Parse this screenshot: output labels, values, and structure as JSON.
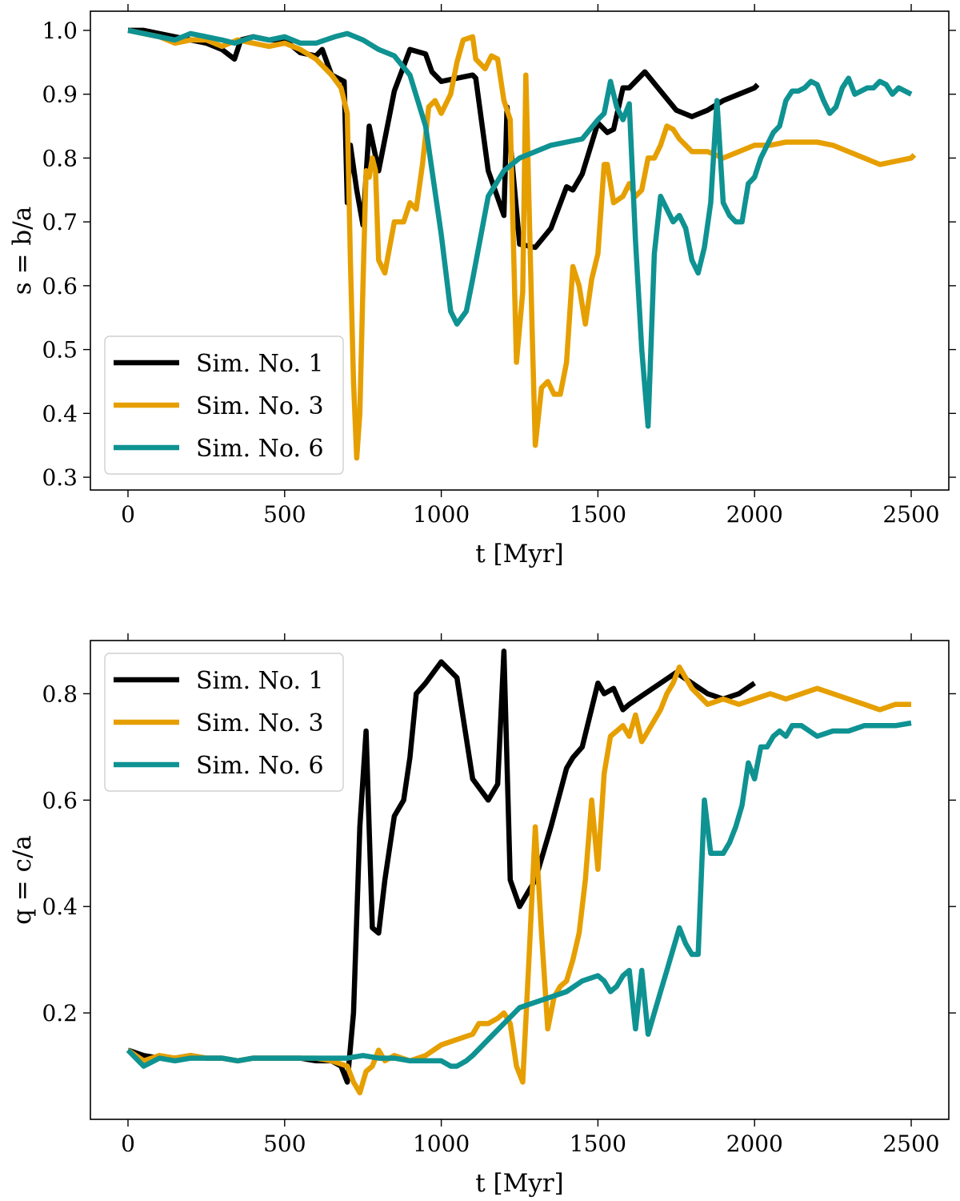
{
  "chart_data": [
    {
      "type": "line",
      "xlabel": "t [Myr]",
      "ylabel": "s = b/a",
      "xlim": [
        -120,
        2620
      ],
      "ylim": [
        0.28,
        1.03
      ],
      "xticks": [
        0,
        500,
        1000,
        1500,
        2000,
        2500
      ],
      "yticks": [
        0.3,
        0.4,
        0.5,
        0.6,
        0.7,
        0.8,
        0.9,
        1.0
      ],
      "xtick_labels": [
        "0",
        "500",
        "1000",
        "1500",
        "2000",
        "2500"
      ],
      "ytick_labels": [
        "0.3",
        "0.4",
        "0.5",
        "0.6",
        "0.7",
        "0.8",
        "0.9",
        "1.0"
      ],
      "legend_position": "lower-left",
      "series": [
        {
          "name": "Sim. No. 1",
          "color": "#000000",
          "x": [
            0,
            50,
            100,
            150,
            200,
            250,
            300,
            340,
            360,
            400,
            450,
            500,
            550,
            600,
            620,
            650,
            690,
            700,
            710,
            730,
            750,
            770,
            800,
            850,
            900,
            950,
            970,
            1000,
            1050,
            1100,
            1110,
            1150,
            1200,
            1210,
            1250,
            1300,
            1350,
            1400,
            1420,
            1450,
            1500,
            1530,
            1550,
            1580,
            1600,
            1650,
            1700,
            1750,
            1800,
            1850,
            1900,
            1950,
            2000,
            2010
          ],
          "y": [
            1.0,
            1.0,
            0.995,
            0.99,
            0.985,
            0.98,
            0.97,
            0.955,
            0.985,
            0.99,
            0.985,
            0.985,
            0.965,
            0.96,
            0.97,
            0.93,
            0.92,
            0.73,
            0.82,
            0.75,
            0.695,
            0.85,
            0.78,
            0.905,
            0.97,
            0.963,
            0.935,
            0.92,
            0.925,
            0.93,
            0.925,
            0.78,
            0.71,
            0.88,
            0.665,
            0.66,
            0.69,
            0.755,
            0.75,
            0.775,
            0.855,
            0.84,
            0.845,
            0.91,
            0.91,
            0.935,
            0.905,
            0.875,
            0.865,
            0.875,
            0.89,
            0.9,
            0.91,
            0.915
          ]
        },
        {
          "name": "Sim. No. 3",
          "color": "#e69f00",
          "x": [
            0,
            50,
            100,
            150,
            200,
            250,
            300,
            350,
            400,
            450,
            500,
            550,
            600,
            620,
            650,
            680,
            700,
            710,
            720,
            730,
            740,
            750,
            760,
            770,
            780,
            790,
            800,
            820,
            850,
            880,
            900,
            920,
            940,
            960,
            980,
            1000,
            1030,
            1050,
            1070,
            1100,
            1110,
            1140,
            1160,
            1180,
            1200,
            1220,
            1240,
            1260,
            1270,
            1290,
            1300,
            1320,
            1340,
            1360,
            1380,
            1400,
            1420,
            1440,
            1460,
            1480,
            1500,
            1520,
            1530,
            1550,
            1580,
            1600,
            1620,
            1640,
            1660,
            1680,
            1700,
            1720,
            1740,
            1760,
            1780,
            1800,
            1850,
            1900,
            1950,
            2000,
            2050,
            2100,
            2150,
            2200,
            2250,
            2300,
            2350,
            2400,
            2450,
            2500,
            2510
          ],
          "y": [
            1.0,
            0.995,
            0.99,
            0.98,
            0.985,
            0.985,
            0.975,
            0.985,
            0.98,
            0.975,
            0.98,
            0.97,
            0.955,
            0.945,
            0.93,
            0.91,
            0.87,
            0.64,
            0.45,
            0.33,
            0.4,
            0.6,
            0.78,
            0.77,
            0.8,
            0.78,
            0.64,
            0.62,
            0.7,
            0.7,
            0.73,
            0.72,
            0.79,
            0.88,
            0.89,
            0.87,
            0.9,
            0.95,
            0.985,
            0.99,
            0.955,
            0.94,
            0.96,
            0.955,
            0.89,
            0.86,
            0.48,
            0.59,
            0.93,
            0.53,
            0.35,
            0.44,
            0.45,
            0.43,
            0.43,
            0.48,
            0.63,
            0.6,
            0.54,
            0.61,
            0.65,
            0.79,
            0.79,
            0.73,
            0.74,
            0.76,
            0.74,
            0.75,
            0.8,
            0.8,
            0.82,
            0.85,
            0.845,
            0.83,
            0.82,
            0.81,
            0.81,
            0.8,
            0.81,
            0.82,
            0.82,
            0.825,
            0.825,
            0.825,
            0.82,
            0.81,
            0.8,
            0.79,
            0.795,
            0.8,
            0.805
          ]
        },
        {
          "name": "Sim. No. 6",
          "color": "#0f9292",
          "x": [
            0,
            50,
            100,
            150,
            200,
            250,
            300,
            340,
            400,
            450,
            500,
            550,
            600,
            630,
            660,
            700,
            750,
            800,
            850,
            900,
            950,
            1000,
            1030,
            1050,
            1080,
            1100,
            1150,
            1200,
            1250,
            1300,
            1350,
            1400,
            1450,
            1500,
            1520,
            1540,
            1560,
            1580,
            1600,
            1620,
            1640,
            1660,
            1680,
            1700,
            1720,
            1740,
            1760,
            1780,
            1800,
            1820,
            1840,
            1860,
            1880,
            1900,
            1920,
            1940,
            1960,
            1980,
            2000,
            2020,
            2040,
            2060,
            2080,
            2100,
            2120,
            2140,
            2160,
            2180,
            2200,
            2220,
            2240,
            2260,
            2280,
            2300,
            2320,
            2340,
            2360,
            2380,
            2400,
            2420,
            2440,
            2460,
            2480,
            2500
          ],
          "y": [
            1.0,
            0.995,
            0.99,
            0.985,
            0.995,
            0.99,
            0.985,
            0.98,
            0.99,
            0.985,
            0.99,
            0.98,
            0.98,
            0.985,
            0.99,
            0.995,
            0.985,
            0.97,
            0.96,
            0.93,
            0.85,
            0.68,
            0.56,
            0.54,
            0.56,
            0.61,
            0.74,
            0.78,
            0.8,
            0.81,
            0.82,
            0.825,
            0.83,
            0.86,
            0.87,
            0.92,
            0.88,
            0.86,
            0.885,
            0.67,
            0.5,
            0.38,
            0.65,
            0.74,
            0.72,
            0.7,
            0.71,
            0.69,
            0.64,
            0.62,
            0.66,
            0.73,
            0.89,
            0.73,
            0.71,
            0.7,
            0.7,
            0.76,
            0.77,
            0.8,
            0.82,
            0.84,
            0.85,
            0.89,
            0.905,
            0.905,
            0.91,
            0.92,
            0.915,
            0.89,
            0.87,
            0.88,
            0.91,
            0.925,
            0.9,
            0.905,
            0.91,
            0.91,
            0.92,
            0.915,
            0.9,
            0.91,
            0.905,
            0.9
          ]
        }
      ]
    },
    {
      "type": "line",
      "xlabel": "t [Myr]",
      "ylabel": "q = c/a",
      "xlim": [
        -120,
        2620
      ],
      "ylim": [
        0.0,
        0.9
      ],
      "xticks": [
        0,
        500,
        1000,
        1500,
        2000,
        2500
      ],
      "yticks": [
        0.2,
        0.4,
        0.6,
        0.8
      ],
      "xtick_labels": [
        "0",
        "500",
        "1000",
        "1500",
        "2000",
        "2500"
      ],
      "ytick_labels": [
        "0.2",
        "0.4",
        "0.6",
        "0.8"
      ],
      "legend_position": "upper-left",
      "series": [
        {
          "name": "Sim. No. 1",
          "color": "#000000",
          "x": [
            0,
            50,
            100,
            150,
            200,
            250,
            300,
            350,
            400,
            450,
            500,
            550,
            600,
            650,
            680,
            700,
            720,
            740,
            760,
            780,
            800,
            820,
            850,
            880,
            900,
            920,
            950,
            1000,
            1050,
            1100,
            1150,
            1180,
            1200,
            1220,
            1250,
            1280,
            1300,
            1350,
            1400,
            1420,
            1450,
            1500,
            1520,
            1550,
            1580,
            1600,
            1650,
            1700,
            1750,
            1800,
            1850,
            1900,
            1950,
            2000
          ],
          "y": [
            0.13,
            0.12,
            0.115,
            0.115,
            0.12,
            0.115,
            0.115,
            0.11,
            0.115,
            0.115,
            0.115,
            0.115,
            0.11,
            0.11,
            0.1,
            0.07,
            0.2,
            0.55,
            0.73,
            0.36,
            0.35,
            0.45,
            0.57,
            0.6,
            0.68,
            0.8,
            0.82,
            0.86,
            0.83,
            0.64,
            0.6,
            0.63,
            0.88,
            0.45,
            0.4,
            0.43,
            0.45,
            0.55,
            0.66,
            0.68,
            0.7,
            0.82,
            0.8,
            0.81,
            0.77,
            0.78,
            0.8,
            0.82,
            0.84,
            0.82,
            0.8,
            0.79,
            0.8,
            0.82
          ]
        },
        {
          "name": "Sim. No. 3",
          "color": "#e69f00",
          "x": [
            0,
            50,
            100,
            150,
            200,
            250,
            300,
            350,
            400,
            450,
            500,
            550,
            600,
            650,
            700,
            720,
            740,
            760,
            780,
            800,
            820,
            850,
            900,
            950,
            1000,
            1050,
            1100,
            1120,
            1150,
            1180,
            1200,
            1220,
            1240,
            1260,
            1280,
            1300,
            1320,
            1340,
            1360,
            1380,
            1400,
            1420,
            1440,
            1460,
            1480,
            1500,
            1520,
            1540,
            1560,
            1580,
            1600,
            1620,
            1640,
            1660,
            1680,
            1700,
            1720,
            1740,
            1760,
            1780,
            1800,
            1850,
            1900,
            1950,
            2000,
            2050,
            2100,
            2150,
            2200,
            2250,
            2300,
            2350,
            2400,
            2450,
            2500
          ],
          "y": [
            0.13,
            0.11,
            0.12,
            0.115,
            0.12,
            0.115,
            0.115,
            0.11,
            0.115,
            0.115,
            0.115,
            0.115,
            0.115,
            0.11,
            0.1,
            0.07,
            0.05,
            0.09,
            0.1,
            0.13,
            0.11,
            0.12,
            0.11,
            0.12,
            0.14,
            0.15,
            0.16,
            0.18,
            0.18,
            0.19,
            0.2,
            0.18,
            0.1,
            0.07,
            0.3,
            0.55,
            0.35,
            0.17,
            0.23,
            0.25,
            0.26,
            0.3,
            0.35,
            0.45,
            0.6,
            0.47,
            0.65,
            0.72,
            0.73,
            0.74,
            0.72,
            0.76,
            0.71,
            0.73,
            0.75,
            0.77,
            0.8,
            0.82,
            0.85,
            0.83,
            0.81,
            0.78,
            0.79,
            0.78,
            0.79,
            0.8,
            0.79,
            0.8,
            0.81,
            0.8,
            0.79,
            0.78,
            0.77,
            0.78,
            0.78
          ]
        },
        {
          "name": "Sim. No. 6",
          "color": "#0f9292",
          "x": [
            0,
            50,
            100,
            150,
            200,
            250,
            300,
            350,
            400,
            450,
            500,
            550,
            600,
            650,
            700,
            750,
            800,
            850,
            900,
            950,
            1000,
            1030,
            1050,
            1080,
            1100,
            1150,
            1200,
            1250,
            1300,
            1350,
            1400,
            1450,
            1500,
            1520,
            1540,
            1560,
            1580,
            1600,
            1620,
            1640,
            1660,
            1680,
            1700,
            1720,
            1740,
            1760,
            1780,
            1800,
            1820,
            1840,
            1860,
            1880,
            1900,
            1920,
            1940,
            1960,
            1980,
            2000,
            2020,
            2040,
            2060,
            2080,
            2100,
            2120,
            2150,
            2200,
            2250,
            2300,
            2350,
            2400,
            2450,
            2500
          ],
          "y": [
            0.13,
            0.1,
            0.115,
            0.11,
            0.115,
            0.115,
            0.115,
            0.11,
            0.115,
            0.115,
            0.115,
            0.115,
            0.115,
            0.115,
            0.115,
            0.12,
            0.115,
            0.115,
            0.11,
            0.11,
            0.11,
            0.1,
            0.1,
            0.11,
            0.12,
            0.15,
            0.18,
            0.21,
            0.22,
            0.23,
            0.24,
            0.26,
            0.27,
            0.26,
            0.24,
            0.25,
            0.27,
            0.28,
            0.17,
            0.28,
            0.16,
            0.2,
            0.24,
            0.28,
            0.32,
            0.36,
            0.33,
            0.31,
            0.31,
            0.6,
            0.5,
            0.5,
            0.5,
            0.52,
            0.55,
            0.59,
            0.67,
            0.64,
            0.7,
            0.7,
            0.72,
            0.73,
            0.72,
            0.74,
            0.74,
            0.72,
            0.73,
            0.73,
            0.74,
            0.74,
            0.74,
            0.745
          ]
        }
      ]
    }
  ]
}
